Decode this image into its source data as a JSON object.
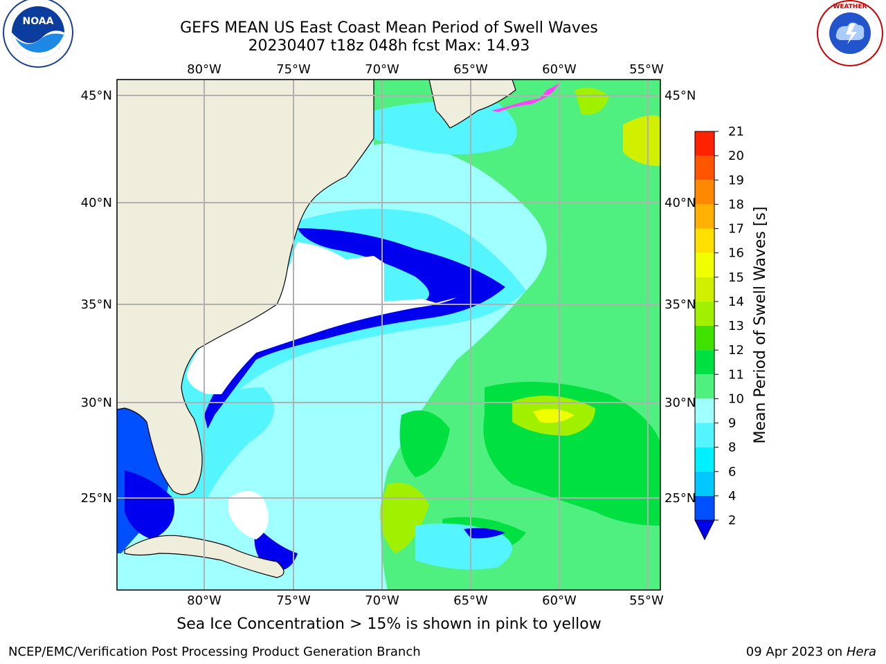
{
  "title_line1": "GEFS MEAN US East Coast Mean Period of Swell Waves",
  "title_line2": "20230407 t18z 048h fcst   Max: 14.93",
  "caption": "Sea Ice Concentration > 15% is shown in pink to yellow",
  "footer_left": "NCEP/EMC/Verification Post Processing Product Generation Branch",
  "footer_right_date": "09 Apr 2023 on ",
  "footer_right_host": "Hera",
  "logos": {
    "left": "NOAA",
    "right": "NATIONAL WEATHER SERVICE"
  },
  "map": {
    "lon_labels": [
      "80°W",
      "75°W",
      "70°W",
      "65°W",
      "60°W",
      "55°W"
    ],
    "lat_labels": [
      "45°N",
      "40°N",
      "35°N",
      "30°N",
      "25°N"
    ],
    "land_color": "#efeedd",
    "nodata_color": "#ffffff"
  },
  "colorbar": {
    "label": "Mean Period of Swell Waves [s]",
    "ticks": [
      "2",
      "4",
      "6",
      "8",
      "9",
      "10",
      "11",
      "12",
      "13",
      "14",
      "15",
      "16",
      "17",
      "18",
      "19",
      "20",
      "21"
    ],
    "colors": [
      "#0050ff",
      "#00c8ff",
      "#00f0ff",
      "#55f5ff",
      "#a0ffff",
      "#50f080",
      "#00e040",
      "#40e000",
      "#a0f000",
      "#d0f000",
      "#f0ff00",
      "#ffe000",
      "#ffb000",
      "#ff8800",
      "#ff5500",
      "#ff2200"
    ],
    "under_color": "#0000ee"
  }
}
